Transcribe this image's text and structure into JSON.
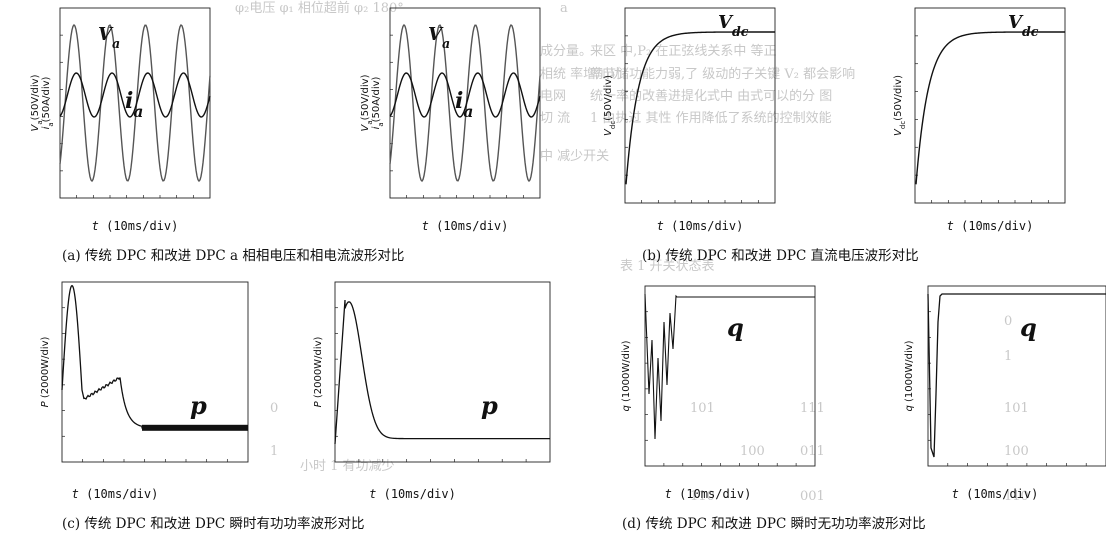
{
  "chart_data": [
    {
      "id": "a1",
      "type": "line",
      "ylabel_main": "V",
      "ylabel_main_sub": "a",
      "ylabel_main_rest": "(50V/div)",
      "ylabel_second": "i",
      "ylabel_second_sub": "a",
      "ylabel_second_rest": "(50A/div)",
      "xlabel": "t (10ms/div)",
      "annotations": [
        {
          "text": "V",
          "sub": "a"
        },
        {
          "text": "i",
          "sub": "a"
        }
      ],
      "series": [
        {
          "values": [
            0,
            0.4,
            0.85,
            1.0,
            0.8,
            0.4,
            0,
            -0.4,
            -0.8,
            -1.0,
            -0.8,
            -0.4,
            0
          ]
        },
        {
          "values": [
            0,
            0.25,
            0.45,
            0.5,
            0.4,
            0.2,
            0,
            -0.2,
            -0.4,
            -0.5,
            -0.4,
            -0.2,
            0
          ]
        }
      ]
    },
    {
      "id": "a2",
      "type": "line",
      "ylabel_main": "V",
      "ylabel_main_sub": "a",
      "ylabel_main_rest": "(50V/div)",
      "ylabel_second": "i",
      "ylabel_second_sub": "a",
      "ylabel_second_rest": "(50A/div)",
      "xlabel": "t (10ms/div)",
      "annotations": [
        {
          "text": "V",
          "sub": "a"
        },
        {
          "text": "i",
          "sub": "a"
        }
      ],
      "series": [
        {
          "values": [
            0,
            0.4,
            0.85,
            1.0,
            0.8,
            0.4,
            0,
            -0.4,
            -0.8,
            -1.0,
            -0.8,
            -0.4,
            0
          ]
        },
        {
          "values": [
            0,
            0.25,
            0.45,
            0.5,
            0.4,
            0.2,
            0,
            -0.2,
            -0.4,
            -0.5,
            -0.4,
            -0.2,
            0
          ]
        }
      ]
    },
    {
      "id": "b1",
      "type": "line",
      "ylabel": "V",
      "ylabel_sub": "dc",
      "ylabel_rest": "(50V/div)",
      "xlabel": "t (10ms/div)",
      "annotations": [
        {
          "text": "V",
          "sub": "dc"
        }
      ]
    },
    {
      "id": "b2",
      "type": "line",
      "ylabel": "V",
      "ylabel_sub": "dc",
      "ylabel_rest": "(50V/div)",
      "xlabel": "t (10ms/div)",
      "annotations": [
        {
          "text": "V",
          "sub": "dc"
        }
      ]
    },
    {
      "id": "c1",
      "type": "line",
      "ylabel": "P (2000W/div)",
      "xlabel": "t (10ms/div)",
      "annotations": [
        {
          "text": "p"
        }
      ]
    },
    {
      "id": "c2",
      "type": "line",
      "ylabel": "P (2000W/div)",
      "xlabel": "t (10ms/div)",
      "annotations": [
        {
          "text": "p"
        }
      ]
    },
    {
      "id": "d1",
      "type": "line",
      "ylabel": "q (1000W/div)",
      "xlabel": "t (10ms/div)",
      "annotations": [
        {
          "text": "q"
        }
      ]
    },
    {
      "id": "d2",
      "type": "line",
      "ylabel": "q (1000W/div)",
      "xlabel": "t (10ms/div)",
      "annotations": [
        {
          "text": "q"
        }
      ]
    }
  ],
  "captions": {
    "a": "(a) 传统 DPC 和改进 DPC a 相相电压和相电流波形对比",
    "b": "(b) 传统 DPC 和改进 DPC 直流电压波形对比",
    "c": "(c) 传统 DPC 和改进 DPC 瞬时有功功率波形对比",
    "d": "(d) 传统 DPC 和改进 DPC 瞬时无功功率波形对比"
  },
  "colors": {
    "trace": "#111111",
    "trace_light": "#555555",
    "bleed": "#c8c8c8"
  }
}
